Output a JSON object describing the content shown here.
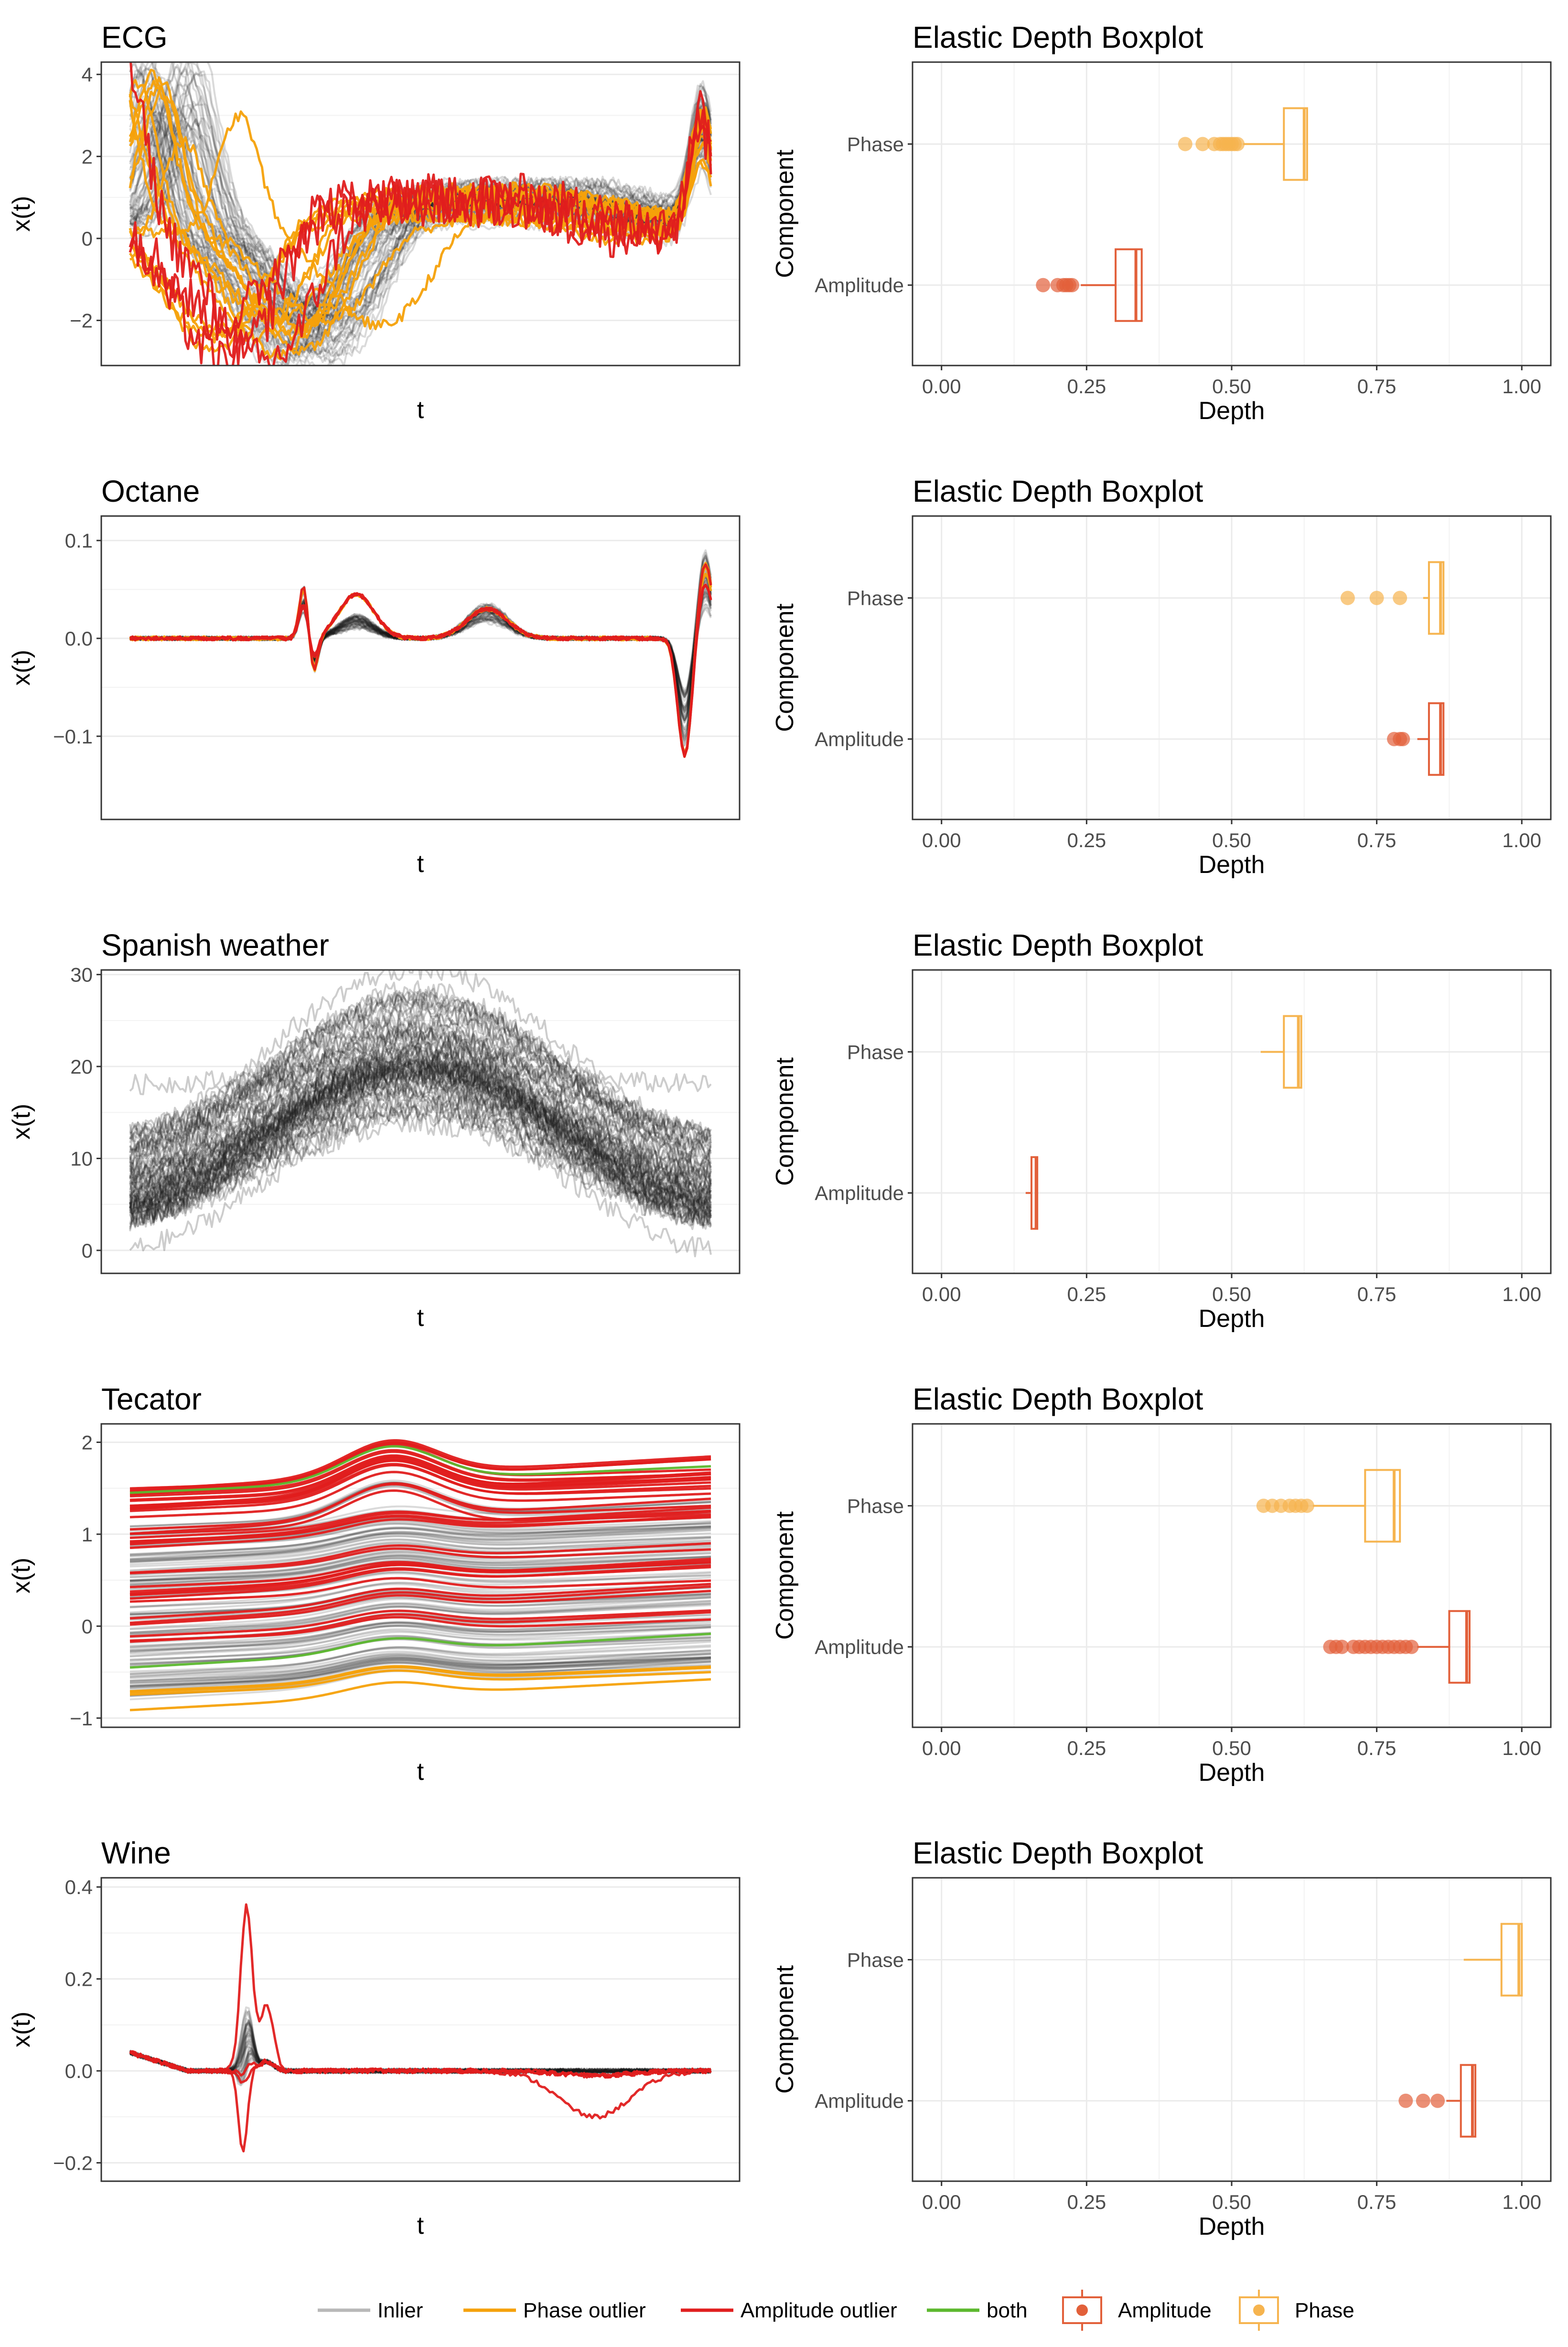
{
  "colors": {
    "inlier": "#b8b8b8",
    "inlier_dark": "#1a1a1a",
    "phase_outlier": "#f5a10a",
    "amplitude_outlier": "#e01e1e",
    "both": "#5cb82e",
    "box_amplitude": "#e2603a",
    "box_phase": "#f6b44f"
  },
  "legend": {
    "lines": [
      {
        "label": "Inlier",
        "color_key": "inlier"
      },
      {
        "label": "Phase outlier",
        "color_key": "phase_outlier"
      },
      {
        "label": "Amplitude outlier",
        "color_key": "amplitude_outlier"
      },
      {
        "label": "both",
        "color_key": "both"
      }
    ],
    "boxes": [
      {
        "label": "Amplitude",
        "color_key": "box_amplitude"
      },
      {
        "label": "Phase",
        "color_key": "box_phase"
      }
    ]
  },
  "chart_data": [
    {
      "type": "line",
      "title": "ECG",
      "xlabel": "t",
      "ylabel": "x(t)",
      "ylim": [
        -3.1,
        4.3
      ],
      "yticks": [
        -2,
        0,
        2,
        4
      ],
      "ytick_labels": [
        "−2",
        "0",
        "2",
        "4"
      ],
      "shape": "ecg",
      "series": [
        {
          "name": "Inlier",
          "color_key": "inlier_dark",
          "count": 60
        },
        {
          "name": "Phase outlier",
          "color_key": "phase_outlier",
          "count": 14
        },
        {
          "name": "Amplitude outlier",
          "color_key": "amplitude_outlier",
          "count": 3
        }
      ]
    },
    {
      "type": "boxplot",
      "title": "Elastic Depth Boxplot",
      "xlabel": "Depth",
      "ylabel": "Component",
      "xlim": [
        -0.05,
        1.05
      ],
      "xticks": [
        0,
        0.25,
        0.5,
        0.75,
        1.0
      ],
      "xtick_labels": [
        "0.00",
        "0.25",
        "0.50",
        "0.75",
        "1.00"
      ],
      "categories": [
        "Phase",
        "Amplitude"
      ],
      "boxes": [
        {
          "name": "Phase",
          "color_key": "box_phase",
          "whisker_low": 0.52,
          "q1": 0.59,
          "median": 0.625,
          "q3": 0.63,
          "whisker_high": 0.63,
          "outliers": [
            0.42,
            0.45,
            0.47,
            0.48,
            0.485,
            0.49,
            0.495,
            0.5,
            0.505,
            0.51
          ]
        },
        {
          "name": "Amplitude",
          "color_key": "box_amplitude",
          "whisker_low": 0.24,
          "q1": 0.3,
          "median": 0.335,
          "q3": 0.345,
          "whisker_high": 0.345,
          "outliers": [
            0.175,
            0.2,
            0.21,
            0.215,
            0.22,
            0.225
          ]
        }
      ]
    },
    {
      "type": "line",
      "title": "Octane",
      "xlabel": "t",
      "ylabel": "x(t)",
      "ylim": [
        -0.185,
        0.125
      ],
      "yticks": [
        -0.1,
        0.0,
        0.1
      ],
      "ytick_labels": [
        "−0.1",
        "0.0",
        "0.1"
      ],
      "shape": "octane",
      "series": [
        {
          "name": "Inlier",
          "color_key": "inlier_dark",
          "count": 45
        },
        {
          "name": "Phase outlier",
          "color_key": "phase_outlier",
          "count": 3
        },
        {
          "name": "Amplitude outlier",
          "color_key": "amplitude_outlier",
          "count": 3
        }
      ]
    },
    {
      "type": "boxplot",
      "title": "Elastic Depth Boxplot",
      "xlabel": "Depth",
      "ylabel": "Component",
      "xlim": [
        -0.05,
        1.05
      ],
      "xticks": [
        0,
        0.25,
        0.5,
        0.75,
        1.0
      ],
      "xtick_labels": [
        "0.00",
        "0.25",
        "0.50",
        "0.75",
        "1.00"
      ],
      "categories": [
        "Phase",
        "Amplitude"
      ],
      "boxes": [
        {
          "name": "Phase",
          "color_key": "box_phase",
          "whisker_low": 0.83,
          "q1": 0.84,
          "median": 0.86,
          "q3": 0.865,
          "whisker_high": 0.865,
          "outliers": [
            0.7,
            0.75,
            0.79
          ]
        },
        {
          "name": "Amplitude",
          "color_key": "box_amplitude",
          "whisker_low": 0.82,
          "q1": 0.84,
          "median": 0.86,
          "q3": 0.865,
          "whisker_high": 0.865,
          "outliers": [
            0.78,
            0.79,
            0.795
          ]
        }
      ]
    },
    {
      "type": "line",
      "title": "Spanish weather",
      "xlabel": "t",
      "ylabel": "x(t)",
      "ylim": [
        -2.5,
        30.5
      ],
      "yticks": [
        0,
        10,
        20,
        30
      ],
      "ytick_labels": [
        "0",
        "10",
        "20",
        "30"
      ],
      "shape": "weather",
      "series": [
        {
          "name": "Inlier",
          "color_key": "inlier_dark",
          "count": 73
        }
      ]
    },
    {
      "type": "boxplot",
      "title": "Elastic Depth Boxplot",
      "xlabel": "Depth",
      "ylabel": "Component",
      "xlim": [
        -0.05,
        1.05
      ],
      "xticks": [
        0,
        0.25,
        0.5,
        0.75,
        1.0
      ],
      "xtick_labels": [
        "0.00",
        "0.25",
        "0.50",
        "0.75",
        "1.00"
      ],
      "categories": [
        "Phase",
        "Amplitude"
      ],
      "boxes": [
        {
          "name": "Phase",
          "color_key": "box_phase",
          "whisker_low": 0.55,
          "q1": 0.59,
          "median": 0.615,
          "q3": 0.62,
          "whisker_high": 0.62,
          "outliers": []
        },
        {
          "name": "Amplitude",
          "color_key": "box_amplitude",
          "whisker_low": 0.145,
          "q1": 0.155,
          "median": 0.163,
          "q3": 0.165,
          "whisker_high": 0.165,
          "outliers": []
        }
      ]
    },
    {
      "type": "line",
      "title": "Tecator",
      "xlabel": "t",
      "ylabel": "x(t)",
      "ylim": [
        -1.1,
        2.2
      ],
      "yticks": [
        -1,
        0,
        1,
        2
      ],
      "ytick_labels": [
        "−1",
        "0",
        "1",
        "2"
      ],
      "shape": "tecator",
      "series": [
        {
          "name": "Inlier",
          "color_key": "inlier_dark",
          "count": 140
        },
        {
          "name": "Phase outlier",
          "color_key": "phase_outlier",
          "count": 4
        },
        {
          "name": "Amplitude outlier",
          "color_key": "amplitude_outlier",
          "count": 40
        },
        {
          "name": "both",
          "color_key": "both",
          "count": 2
        }
      ]
    },
    {
      "type": "boxplot",
      "title": "Elastic Depth Boxplot",
      "xlabel": "Depth",
      "ylabel": "Component",
      "xlim": [
        -0.05,
        1.05
      ],
      "xticks": [
        0,
        0.25,
        0.5,
        0.75,
        1.0
      ],
      "xtick_labels": [
        "0.00",
        "0.25",
        "0.50",
        "0.75",
        "1.00"
      ],
      "categories": [
        "Phase",
        "Amplitude"
      ],
      "boxes": [
        {
          "name": "Phase",
          "color_key": "box_phase",
          "whisker_low": 0.64,
          "q1": 0.73,
          "median": 0.78,
          "q3": 0.79,
          "whisker_high": 0.79,
          "outliers": [
            0.555,
            0.57,
            0.585,
            0.6,
            0.61,
            0.62,
            0.63
          ]
        },
        {
          "name": "Amplitude",
          "color_key": "box_amplitude",
          "whisker_low": 0.82,
          "q1": 0.875,
          "median": 0.905,
          "q3": 0.91,
          "whisker_high": 0.91,
          "outliers": [
            0.67,
            0.68,
            0.69,
            0.71,
            0.72,
            0.73,
            0.74,
            0.75,
            0.76,
            0.77,
            0.78,
            0.79,
            0.8,
            0.81
          ]
        }
      ]
    },
    {
      "type": "line",
      "title": "Wine",
      "xlabel": "t",
      "ylabel": "x(t)",
      "ylim": [
        -0.24,
        0.42
      ],
      "yticks": [
        -0.2,
        0.0,
        0.2,
        0.4
      ],
      "ytick_labels": [
        "−0.2",
        "0.0",
        "0.2",
        "0.4"
      ],
      "shape": "wine",
      "series": [
        {
          "name": "Inlier",
          "color_key": "inlier_dark",
          "count": 40
        },
        {
          "name": "Amplitude outlier",
          "color_key": "amplitude_outlier",
          "count": 4
        }
      ]
    },
    {
      "type": "boxplot",
      "title": "Elastic Depth Boxplot",
      "xlabel": "Depth",
      "ylabel": "Component",
      "xlim": [
        -0.05,
        1.05
      ],
      "xticks": [
        0,
        0.25,
        0.5,
        0.75,
        1.0
      ],
      "xtick_labels": [
        "0.00",
        "0.25",
        "0.50",
        "0.75",
        "1.00"
      ],
      "categories": [
        "Phase",
        "Amplitude"
      ],
      "boxes": [
        {
          "name": "Phase",
          "color_key": "box_phase",
          "whisker_low": 0.9,
          "q1": 0.965,
          "median": 0.995,
          "q3": 1.0,
          "whisker_high": 1.0,
          "outliers": []
        },
        {
          "name": "Amplitude",
          "color_key": "box_amplitude",
          "whisker_low": 0.87,
          "q1": 0.895,
          "median": 0.915,
          "q3": 0.92,
          "whisker_high": 0.92,
          "outliers": [
            0.8,
            0.83,
            0.855
          ]
        }
      ]
    }
  ]
}
